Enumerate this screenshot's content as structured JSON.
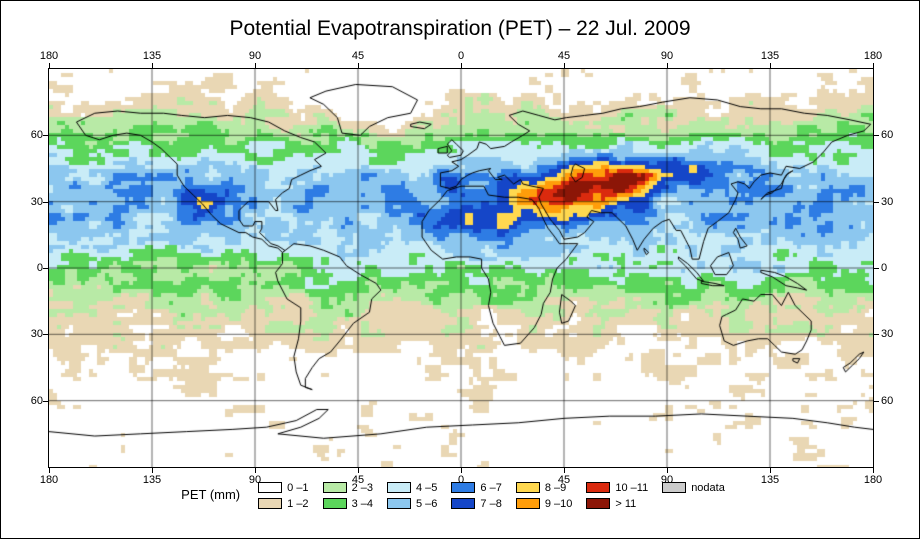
{
  "title": "Potential Evapotranspiration (PET) – 22 Jul. 2009",
  "axes": {
    "lon_ticks": [
      "180",
      "135",
      "90",
      "45",
      "0",
      "45",
      "90",
      "135",
      "180"
    ],
    "lat_ticks": [
      "60",
      "30",
      "0",
      "30",
      "60"
    ]
  },
  "legend": {
    "label": "PET (mm)",
    "items": [
      {
        "label": "0 –1",
        "color": "#ffffff"
      },
      {
        "label": "1 –2",
        "color": "#e9d7b4"
      },
      {
        "label": "2 –3",
        "color": "#b8eaa6"
      },
      {
        "label": "3 –4",
        "color": "#5cd65c"
      },
      {
        "label": "4 –5",
        "color": "#c9ecf7"
      },
      {
        "label": "5 –6",
        "color": "#8cc7ef"
      },
      {
        "label": "6 –7",
        "color": "#2e7ce4"
      },
      {
        "label": "7 –8",
        "color": "#1546c8"
      },
      {
        "label": "8 –9",
        "color": "#ffd84f"
      },
      {
        "label": "9 –10",
        "color": "#ff9d0a"
      },
      {
        "label": "10 –11",
        "color": "#da2a0e"
      },
      {
        "label": "> 11",
        "color": "#8c1607"
      },
      {
        "label": "nodata",
        "color": "#cbcbcb"
      }
    ]
  }
}
